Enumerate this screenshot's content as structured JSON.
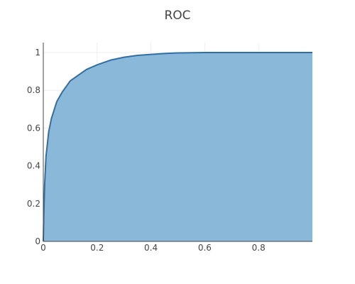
{
  "chart_data": {
    "type": "area",
    "title": "ROC",
    "xlabel": "",
    "ylabel": "",
    "xlim": [
      0,
      1
    ],
    "ylim": [
      0,
      1
    ],
    "xticks": [
      0,
      0.2,
      0.4,
      0.6,
      0.8
    ],
    "xtick_labels": [
      "0",
      "0.2",
      "0.4",
      "0.6",
      "0.8"
    ],
    "yticks": [
      0,
      0.2,
      0.4,
      0.6,
      0.8,
      1
    ],
    "ytick_labels": [
      "0",
      "0.2",
      "0.4",
      "0.6",
      "0.8",
      "1"
    ],
    "grid": true,
    "series": [
      {
        "x": [
          0,
          0.002,
          0.005,
          0.01,
          0.02,
          0.03,
          0.05,
          0.07,
          0.1,
          0.13,
          0.16,
          0.2,
          0.25,
          0.3,
          0.35,
          0.4,
          0.45,
          0.5,
          0.6,
          0.7,
          0.8,
          0.9,
          1.0
        ],
        "y": [
          0,
          0.15,
          0.3,
          0.45,
          0.58,
          0.65,
          0.74,
          0.79,
          0.85,
          0.88,
          0.91,
          0.935,
          0.96,
          0.975,
          0.985,
          0.99,
          0.995,
          0.998,
          1,
          1,
          1,
          1,
          1
        ],
        "line_color": "#2f6fa6",
        "fill_color": "#8ab8d9"
      }
    ]
  }
}
